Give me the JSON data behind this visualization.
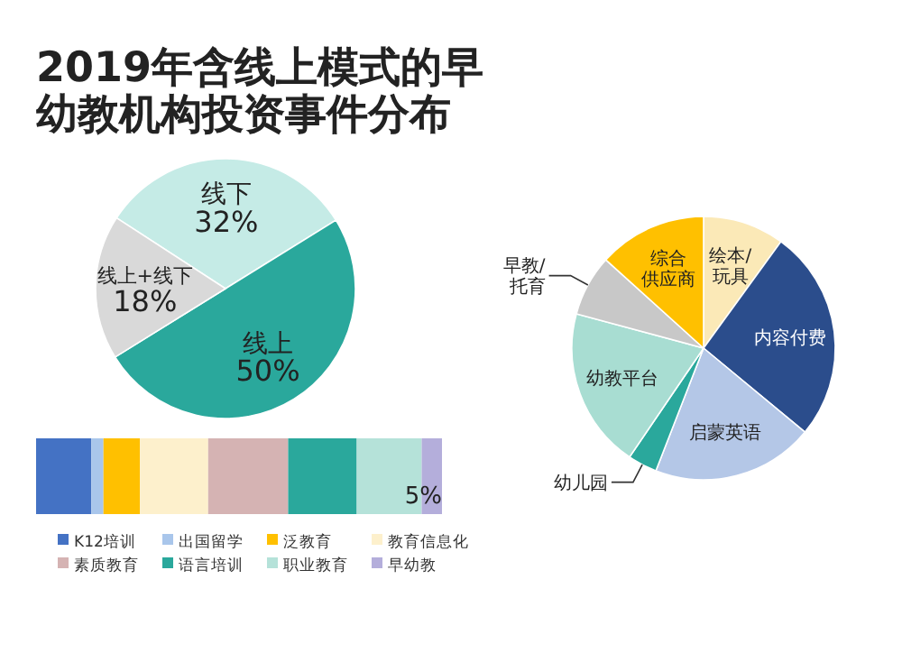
{
  "chart_data": [
    {
      "type": "pie",
      "title": "2019年含线上模式的早幼教机构投资事件分布",
      "categories": [
        "线下",
        "线上",
        "线上+线下"
      ],
      "values": [
        32,
        50,
        18
      ],
      "value_labels": [
        "32%",
        "50%",
        "18%"
      ],
      "colors": [
        "#c5ebe6",
        "#2aa89c",
        "#d9d9d9"
      ]
    },
    {
      "type": "bar",
      "orientation": "horizontal",
      "stacked": true,
      "categories": [
        null
      ],
      "legend": "bottom",
      "series": [
        {
          "name": "K12培训",
          "color": "#4472c4",
          "values": [
            13.6
          ]
        },
        {
          "name": "出国留学",
          "color": "#a9c6eb",
          "values": [
            3
          ]
        },
        {
          "name": "泛教育",
          "color": "#ffc000",
          "values": [
            9
          ]
        },
        {
          "name": "教育信息化",
          "color": "#fdf0cc",
          "values": [
            16.8
          ]
        },
        {
          "name": "素质教育",
          "color": "#d5b3b3",
          "values": [
            19.7
          ]
        },
        {
          "name": "语言培训",
          "color": "#2aa89c",
          "values": [
            16.9
          ]
        },
        {
          "name": "职业教育",
          "color": "#b5e2d9",
          "values": [
            16
          ]
        },
        {
          "name": "早幼教",
          "color": "#b4aedb",
          "values": [
            5
          ],
          "value_labels": [
            "5%"
          ]
        }
      ]
    },
    {
      "type": "pie",
      "categories": [
        "绘本/玩具",
        "内容付费",
        "启蒙英语",
        "幼儿园",
        "幼教平台",
        "早教/托育",
        "综合供应商"
      ],
      "values": [
        10,
        26,
        19.9,
        3.6,
        19.7,
        7.5,
        13.3
      ],
      "colors": [
        "#fbe9b7",
        "#2b4d8c",
        "#b4c7e7",
        "#2aa89c",
        "#a8ddd2",
        "#c8c8c8",
        "#ffc000"
      ]
    }
  ]
}
